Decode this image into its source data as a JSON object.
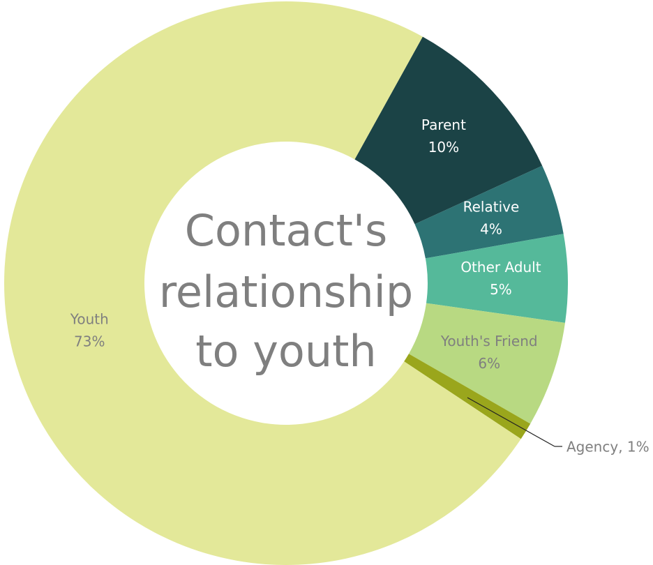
{
  "chart_data": {
    "type": "donut",
    "title": [
      "Contact's",
      "relationship",
      "to youth"
    ],
    "categories": [
      "Parent",
      "Relative",
      "Other Adult",
      "Youth's Friend",
      "Agency",
      "Youth"
    ],
    "values": [
      10,
      4,
      5,
      6,
      1,
      73
    ],
    "value_labels": [
      "10%",
      "4%",
      "5%",
      "6%",
      "Agency, 1%",
      "73%"
    ],
    "colors": [
      "#1b4346",
      "#2d7374",
      "#55b99a",
      "#b8d982",
      "#9aa61c",
      "#e3e899"
    ],
    "label_colors": [
      "#ffffff",
      "#ffffff",
      "#ffffff",
      "#7f7f7f",
      "#7f7f7f",
      "#7f7f7f"
    ],
    "start_angle": 29
  }
}
